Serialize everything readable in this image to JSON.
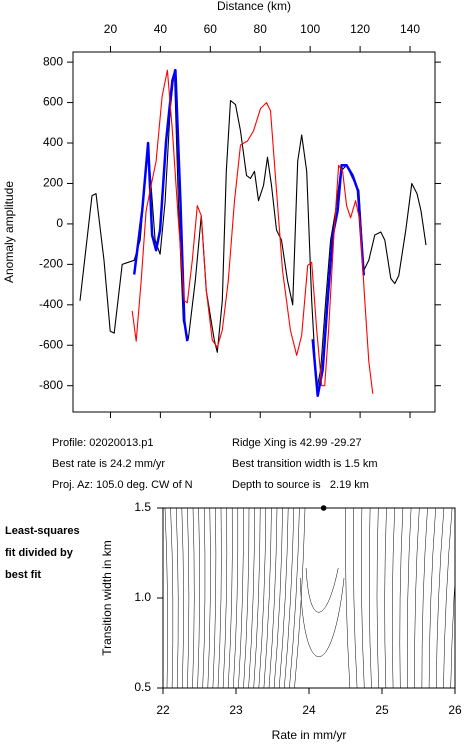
{
  "chart_data": [
    {
      "type": "line",
      "x_label": "Distance (km)",
      "y_label": "Anomaly amplitude",
      "xlim": [
        5,
        150
      ],
      "ylim": [
        -930,
        850
      ],
      "xticks": [
        20,
        40,
        60,
        80,
        100,
        120,
        140
      ],
      "yticks": [
        -800,
        -600,
        -400,
        -200,
        0,
        200,
        400,
        600,
        800
      ],
      "series": [
        {
          "color": "#000000",
          "x": [
            7.8,
            12.6,
            14.2,
            17.4,
            19.9,
            21.5,
            24.7,
            27.1,
            29.5,
            31.9,
            35.1,
            37.9,
            39.9,
            41.9,
            43.9,
            45.6,
            47.2,
            49.2,
            51.2,
            54.0,
            56.4,
            58.4,
            61.6,
            62.8,
            64.8,
            66.4,
            68.1,
            70.1,
            72.1,
            74.5,
            76.1,
            77.7,
            79.3,
            81.3,
            82.9,
            84.5,
            86.5,
            88.5,
            90.9,
            93.0,
            95.0,
            96.6,
            98.6,
            100.6,
            102.6,
            104.2,
            106.2,
            108.2,
            110.2,
            112.2,
            114.6,
            117.0,
            119.5,
            121.5,
            123.5,
            125.9,
            128.3,
            129.9,
            132.3,
            133.9,
            135.5,
            138.3,
            140.7,
            142.8,
            144.4,
            146.4
          ],
          "values": [
            -380,
            140,
            150,
            -180,
            -530,
            -540,
            -200,
            -190,
            -180,
            -80,
            390,
            -80,
            -150,
            110,
            560,
            760,
            110,
            -480,
            -570,
            -280,
            40,
            -330,
            -575,
            -635,
            -380,
            260,
            610,
            590,
            460,
            240,
            225,
            260,
            115,
            190,
            330,
            190,
            -30,
            -80,
            -280,
            -400,
            310,
            440,
            260,
            -380,
            -820,
            -720,
            -380,
            -80,
            65,
            260,
            290,
            225,
            165,
            -230,
            -180,
            -55,
            -40,
            -80,
            -270,
            -295,
            -255,
            -30,
            200,
            150,
            65,
            -105
          ]
        },
        {
          "color": "#0000ff",
          "x": [
            29.5,
            32.7,
            35.1,
            36.7,
            38.3,
            39.9,
            42.3,
            44.8,
            46.0,
            48.0,
            49.6,
            50.8
          ],
          "values": [
            -250,
            65,
            400,
            -55,
            -130,
            -30,
            410,
            710,
            760,
            115,
            -480,
            -580
          ]
        },
        {
          "color": "#0000ff",
          "x": [
            101.0,
            103.0,
            105.0,
            107.0,
            109.0,
            111.0,
            112.6,
            114.6,
            117.0,
            119.1,
            121.5
          ],
          "values": [
            -570,
            -850,
            -720,
            -380,
            -60,
            65,
            290,
            290,
            240,
            165,
            -255
          ]
        },
        {
          "color": "#ff0000",
          "x": [
            28.7,
            30.3,
            32.3,
            34.3,
            36.3,
            38.3,
            40.7,
            42.8,
            44.8,
            47.2,
            49.6,
            50.8,
            52.8,
            54.8,
            56.4,
            58.4,
            60.8,
            62.8,
            64.8,
            67.2,
            69.7,
            72.1,
            74.9,
            77.3,
            80.1,
            82.5,
            84.1,
            86.5,
            88.9,
            92.1,
            94.6,
            96.6,
            99.0,
            100.6,
            102.6,
            104.6,
            105.8,
            107.4,
            109.4,
            111.4,
            113.0,
            114.6,
            116.2,
            118.2,
            119.9,
            121.9,
            123.5,
            125.1
          ],
          "values": [
            -430,
            -580,
            -280,
            65,
            190,
            310,
            630,
            760,
            460,
            15,
            -380,
            -390,
            -180,
            90,
            40,
            -330,
            -575,
            -610,
            -525,
            -280,
            115,
            390,
            410,
            460,
            570,
            600,
            560,
            165,
            -230,
            -525,
            -650,
            -550,
            -205,
            -190,
            -525,
            -800,
            -800,
            -525,
            -80,
            290,
            260,
            90,
            30,
            115,
            15,
            -380,
            -680,
            -840
          ]
        }
      ]
    },
    {
      "type": "contour",
      "x_label": "Rate in mm/yr",
      "y_label": "Transition width in km",
      "xlim": [
        22,
        26
      ],
      "ylim": [
        0.5,
        1.5
      ],
      "xticks": [
        22,
        23,
        24,
        25,
        26
      ],
      "yticks": [
        0.5,
        {
          "value": 1,
          "label": "1.0"
        },
        1.5
      ],
      "best_fit": {
        "x": 24.2,
        "y": 1.5
      }
    }
  ],
  "info": [
    "Profile: 02020013.p1",
    "Ridge Xing is 42.99 -29.27",
    "Best rate is 24.2 mm/yr",
    "Best transition width is 1.5 km",
    "Proj. Az: 105.0 deg. CW of N",
    "Depth to source is   2.19 km"
  ],
  "side_label": [
    "Least-squares",
    "fit divided by",
    "best fit"
  ]
}
